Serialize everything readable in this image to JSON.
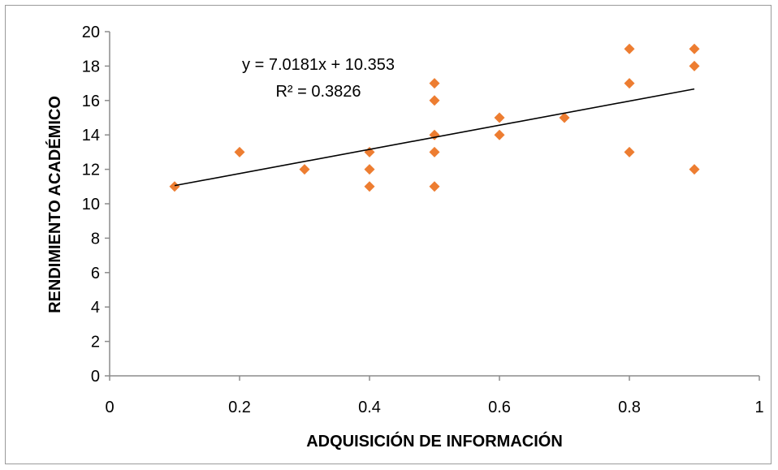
{
  "chart_data": {
    "type": "scatter",
    "title": "",
    "xlabel": "ADQUISICIÓN DE INFORMACIÓN",
    "ylabel": "RENDIMIENTO ACADÉMICO",
    "xlim": [
      0,
      1
    ],
    "ylim": [
      0,
      20
    ],
    "x_ticks": [
      0,
      0.2,
      0.4,
      0.6,
      0.8,
      1
    ],
    "x_tick_labels": [
      "0",
      "0.2",
      "0.4",
      "0.6",
      "0.8",
      "1"
    ],
    "y_ticks": [
      0,
      2,
      4,
      6,
      8,
      10,
      12,
      14,
      16,
      18,
      20
    ],
    "y_tick_labels": [
      "0",
      "2",
      "4",
      "6",
      "8",
      "10",
      "12",
      "14",
      "16",
      "18",
      "20"
    ],
    "grid": false,
    "legend": "none",
    "marker_color": "#ED7D31",
    "points": [
      {
        "x": 0.1,
        "y": 11
      },
      {
        "x": 0.2,
        "y": 13
      },
      {
        "x": 0.3,
        "y": 12
      },
      {
        "x": 0.4,
        "y": 13
      },
      {
        "x": 0.4,
        "y": 12
      },
      {
        "x": 0.4,
        "y": 11
      },
      {
        "x": 0.5,
        "y": 17
      },
      {
        "x": 0.5,
        "y": 16
      },
      {
        "x": 0.5,
        "y": 14
      },
      {
        "x": 0.5,
        "y": 13
      },
      {
        "x": 0.5,
        "y": 11
      },
      {
        "x": 0.6,
        "y": 15
      },
      {
        "x": 0.6,
        "y": 14
      },
      {
        "x": 0.7,
        "y": 15
      },
      {
        "x": 0.8,
        "y": 19
      },
      {
        "x": 0.8,
        "y": 17
      },
      {
        "x": 0.8,
        "y": 13
      },
      {
        "x": 0.9,
        "y": 19
      },
      {
        "x": 0.9,
        "y": 18
      },
      {
        "x": 0.9,
        "y": 12
      }
    ],
    "trendline": {
      "type": "linear",
      "slope": 7.0181,
      "intercept": 10.353,
      "x_range": [
        0.1,
        0.9
      ],
      "color": "#000000",
      "equation_label": "y = 7.0181x + 10.353",
      "r2_label": "R² = 0.3826"
    }
  }
}
